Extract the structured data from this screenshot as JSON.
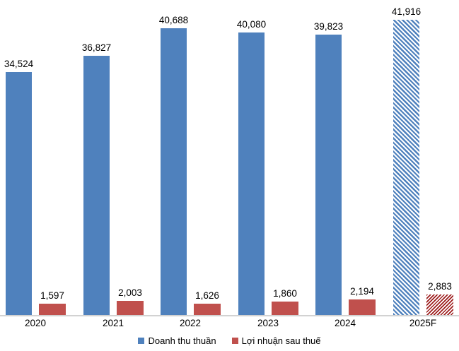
{
  "chart_data": {
    "type": "bar",
    "title": "",
    "categories": [
      "2020",
      "2021",
      "2022",
      "2023",
      "2024",
      "2025F"
    ],
    "series": [
      {
        "name": "Doanh thu thuần",
        "color": "#4F81BD",
        "values": [
          34524,
          36827,
          40688,
          40080,
          39823,
          41916
        ],
        "labels": [
          "34,524",
          "36,827",
          "40,688",
          "40,080",
          "39,823",
          "41,916"
        ]
      },
      {
        "name": "Lợi nhuận sau thuế",
        "color": "#C0504D",
        "values": [
          1597,
          2003,
          1626,
          1860,
          2194,
          2883
        ],
        "labels": [
          "1,597",
          "2,003",
          "1,626",
          "1,860",
          "2,194",
          "2,883"
        ]
      }
    ],
    "forecast_category": "2025F",
    "forecast_hatch": {
      "revenue_color": "#4F81BD",
      "profit_color": "#9E1F1F",
      "revenue_direction": "backslash",
      "profit_direction": "slash"
    },
    "value_label_color": "#000000",
    "axis_line_color": "#D2D2D2",
    "xlabel": "",
    "ylabel": "",
    "ylim": [
      0,
      44700
    ],
    "grid": false,
    "legend_position": "bottom-center",
    "data_labels": true
  }
}
